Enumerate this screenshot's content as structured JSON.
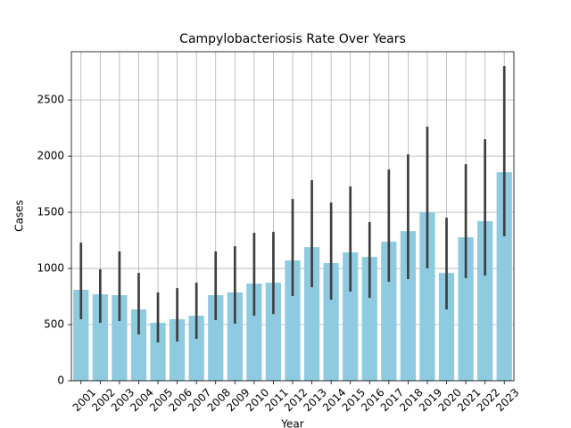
{
  "chart_data": {
    "type": "bar",
    "title": "Campylobacteriosis Rate Over Years",
    "xlabel": "Year",
    "ylabel": "Cases",
    "categories": [
      "2001",
      "2002",
      "2003",
      "2004",
      "2005",
      "2006",
      "2007",
      "2008",
      "2009",
      "2010",
      "2011",
      "2012",
      "2013",
      "2014",
      "2015",
      "2016",
      "2017",
      "2018",
      "2019",
      "2020",
      "2021",
      "2022",
      "2023"
    ],
    "values": [
      810,
      770,
      762,
      635,
      516,
      548,
      579,
      762,
      786,
      865,
      873,
      1071,
      1190,
      1048,
      1143,
      1103,
      1238,
      1333,
      1500,
      960,
      1278,
      1421,
      1857
    ],
    "ci_low": [
      548,
      516,
      532,
      413,
      341,
      349,
      373,
      540,
      508,
      579,
      595,
      754,
      833,
      722,
      794,
      738,
      881,
      905,
      1000,
      635,
      913,
      937,
      1286
    ],
    "ci_high": [
      1230,
      992,
      1151,
      960,
      786,
      825,
      873,
      1151,
      1198,
      1317,
      1325,
      1619,
      1786,
      1587,
      1730,
      1413,
      1881,
      2016,
      2262,
      1452,
      1929,
      2151,
      2802
    ],
    "color": "#8fcbe0",
    "error_color": "#3f3f3f",
    "ylim": [
      0,
      2930
    ],
    "yticks": [
      0,
      500,
      1000,
      1500,
      2000,
      2500
    ],
    "grid": true
  }
}
